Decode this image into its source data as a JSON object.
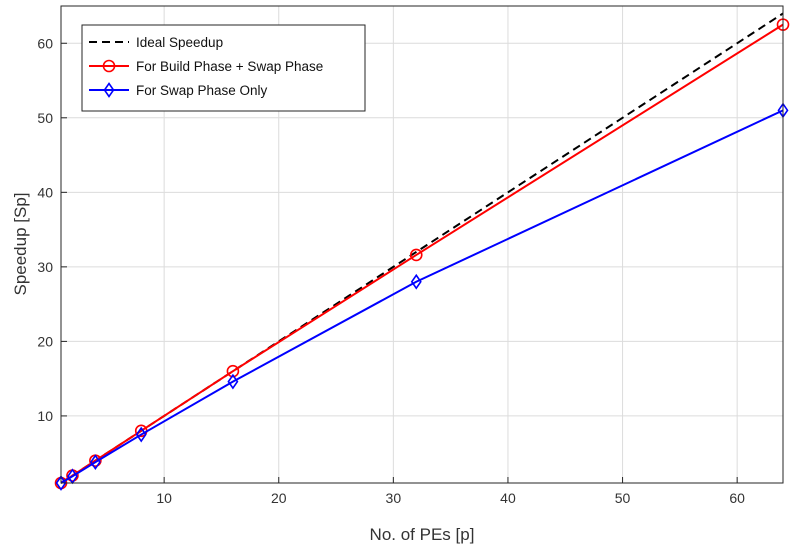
{
  "chart_data": {
    "type": "line",
    "title": "",
    "xlabel": "No. of PEs [p]",
    "ylabel": "Speedup [Sp]",
    "xlim": [
      1,
      64
    ],
    "ylim": [
      1,
      65
    ],
    "xticks": [
      10,
      20,
      30,
      40,
      50,
      60
    ],
    "yticks": [
      10,
      20,
      30,
      40,
      50,
      60
    ],
    "grid": true,
    "legend_position": "top-left",
    "series": [
      {
        "name": "Ideal Speedup",
        "color": "#000000",
        "dash": "dashed",
        "marker": "none",
        "x": [
          1,
          64
        ],
        "y": [
          1,
          64
        ]
      },
      {
        "name": "For Build Phase + Swap Phase",
        "color": "#ff0000",
        "dash": "solid",
        "marker": "circle",
        "x": [
          1,
          2,
          4,
          8,
          16,
          32,
          64
        ],
        "y": [
          1.0,
          2.0,
          4.0,
          8.0,
          16.0,
          31.6,
          62.5
        ]
      },
      {
        "name": "For Swap Phase Only",
        "color": "#0000ff",
        "dash": "solid",
        "marker": "diamond",
        "x": [
          1,
          2,
          4,
          8,
          16,
          32,
          64
        ],
        "y": [
          1.0,
          1.9,
          3.8,
          7.5,
          14.6,
          28.0,
          51.0
        ]
      }
    ]
  }
}
